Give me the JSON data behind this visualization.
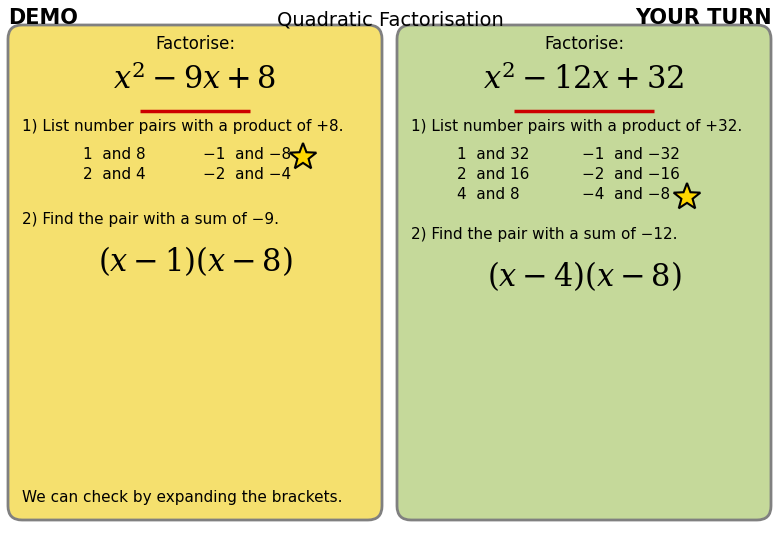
{
  "title": "Quadratic Factorisation",
  "demo_label": "DEMO",
  "yourturn_label": "YOUR TURN",
  "bg_color": "#ffffff",
  "left_bg": "#F5E06E",
  "right_bg": "#C5D99A",
  "border_color": "#808080",
  "underline_color": "#CC0000",
  "text_color": "#000000",
  "star_color_face": "#FFD700",
  "star_color_edge": "#000000",
  "title_fontsize": 14,
  "demo_fontsize": 15,
  "header_fontsize": 12,
  "body_fontsize": 11,
  "math_fontsize": 22,
  "answer_fontsize": 22
}
